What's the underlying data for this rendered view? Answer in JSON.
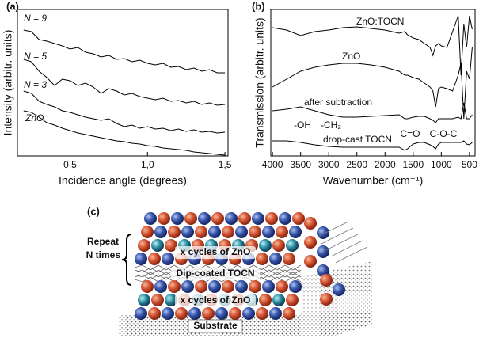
{
  "chart_data": [
    {
      "type": "line",
      "panel": "(a)",
      "x_label": "Incidence angle (degrees)",
      "y_label": "Intensity (arbitr. units)",
      "x": [
        0.2,
        0.25,
        0.3,
        0.35,
        0.4,
        0.45,
        0.5,
        0.55,
        0.6,
        0.65,
        0.7,
        0.75,
        0.8,
        0.85,
        0.9,
        0.95,
        1.0,
        1.05,
        1.1,
        1.15,
        1.2,
        1.25,
        1.3,
        1.35,
        1.4,
        1.45,
        1.5
      ],
      "xlim": [
        0.16,
        1.52
      ],
      "ylim": [
        0,
        185
      ],
      "xticks": [
        {
          "value": 0.5,
          "label": "0,5"
        },
        {
          "value": 1.0,
          "label": "1,0"
        },
        {
          "value": 1.5,
          "label": "1,5"
        }
      ],
      "series": [
        {
          "name": "N = 9",
          "color": "#000000",
          "values": [
            159,
            157,
            147,
            145,
            142,
            139,
            135,
            137,
            131,
            129,
            125,
            127,
            122,
            123,
            119,
            121,
            117,
            115,
            117,
            112,
            113,
            109,
            111,
            107,
            109,
            105,
            105
          ]
        },
        {
          "name": "N = 5",
          "color": "#000000",
          "values": [
            122,
            119,
            107,
            99,
            89,
            97,
            95,
            89,
            92,
            87,
            79,
            85,
            82,
            77,
            79,
            75,
            73,
            71,
            73,
            69,
            70,
            67,
            69,
            65,
            67,
            64,
            65
          ]
        },
        {
          "name": "N = 3",
          "color": "#000000",
          "values": [
            82,
            79,
            69,
            65,
            62,
            57,
            55,
            52,
            49,
            47,
            45,
            47,
            41,
            37,
            39,
            35,
            37,
            34,
            35,
            32,
            34,
            31,
            33,
            30,
            31,
            29,
            30
          ]
        },
        {
          "name": "ZnO",
          "color": "#000000",
          "values": [
            57,
            55,
            49,
            42,
            39,
            35,
            32,
            29,
            27,
            25,
            23,
            21,
            19,
            18,
            16,
            15,
            13,
            12,
            10,
            9,
            8,
            7,
            5,
            4,
            3,
            2,
            1
          ]
        }
      ]
    },
    {
      "type": "line",
      "panel": "(b)",
      "x_label": "Wavenumber (cm⁻¹)",
      "y_label": "Transmission (arbitr. units)",
      "x": [
        4000,
        3750,
        3500,
        3250,
        3000,
        2750,
        2500,
        2250,
        2000,
        1750,
        1650,
        1600,
        1500,
        1400,
        1300,
        1200,
        1150,
        1100,
        1050,
        1000,
        900,
        800,
        700,
        650,
        600,
        550,
        500,
        450
      ],
      "xlim": [
        4030,
        400
      ],
      "ylim": [
        0,
        185
      ],
      "xticks": [
        4000,
        3500,
        3000,
        2500,
        2000,
        1500,
        1000,
        500
      ],
      "series": [
        {
          "name": "ZnO:TOCN",
          "color": "#000000",
          "values": [
            162,
            159,
            152,
            157,
            159,
            162,
            163,
            161,
            159,
            155,
            157,
            153,
            149,
            147,
            142,
            137,
            127,
            139,
            142,
            139,
            137,
            157,
            177,
            102,
            167,
            137,
            177,
            160
          ]
        },
        {
          "name": "ZnO",
          "color": "#000000",
          "values": [
            87,
            97,
            107,
            112,
            115,
            117,
            117,
            115,
            112,
            107,
            102,
            102,
            99,
            97,
            92,
            87,
            82,
            62,
            85,
            87,
            85,
            82,
            102,
            117,
            47,
            107,
            97,
            137
          ]
        },
        {
          "name": "after subtraction",
          "color": "#000000",
          "values": [
            57,
            59,
            62,
            57,
            52,
            49,
            49,
            50,
            51,
            52,
            47,
            47,
            49,
            50,
            50,
            47,
            45,
            42,
            47,
            47,
            47,
            47,
            49,
            47,
            67,
            47,
            47,
            52
          ]
        },
        {
          "name": "drop-cast TOCN",
          "color": "#000000",
          "values": [
            19,
            19,
            17,
            14,
            12,
            11,
            11,
            11,
            11,
            11,
            7,
            9,
            15,
            17,
            17,
            14,
            12,
            9,
            15,
            17,
            17,
            17,
            17,
            17,
            19,
            15,
            14,
            17
          ]
        }
      ],
      "annotations": [
        "-OH",
        "-CH₂",
        "C=O",
        "C-O-C"
      ]
    }
  ],
  "diagram": {
    "panel": "(c)",
    "repeat": "Repeat",
    "n_times": "N times",
    "top_block": "x cycles of ZnO",
    "tocn": "Dip-coated TOCN",
    "bottom_block": "x cycles of ZnO",
    "substrate": "Substrate"
  }
}
